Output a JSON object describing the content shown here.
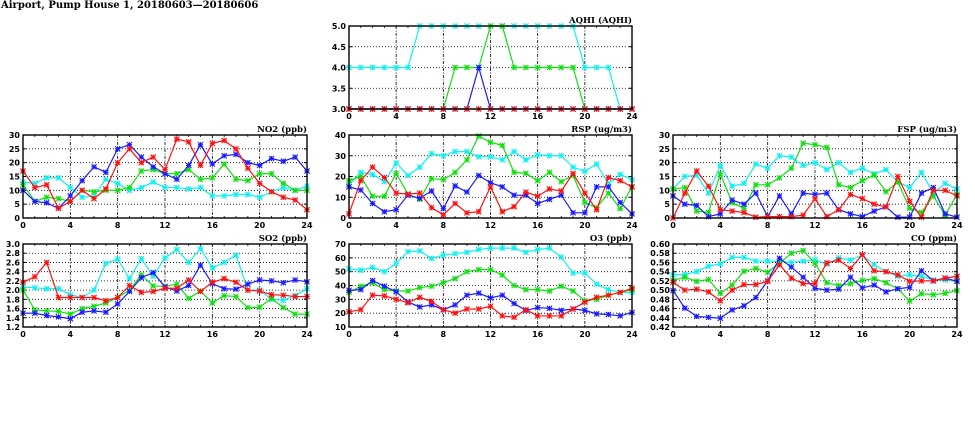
{
  "title": "Airport, Pump House 1, 20180603—20180606",
  "colors": {
    "blue": "#1a1aff",
    "red": "#ff1010",
    "green": "#10e010",
    "cyan": "#10f0f0"
  },
  "chart_data": [
    {
      "type": "line",
      "title": "AQHI (AQHI)",
      "panel": "top-center",
      "x": [
        0,
        1,
        2,
        3,
        4,
        5,
        6,
        7,
        8,
        9,
        10,
        11,
        12,
        13,
        14,
        15,
        16,
        17,
        18,
        19,
        20,
        21,
        22,
        23,
        24
      ],
      "xlim": [
        0,
        24
      ],
      "xticks": [
        "0",
        "4",
        "8",
        "12",
        "16",
        "20",
        "24"
      ],
      "ylim": [
        3.0,
        5.0
      ],
      "yticks": [
        "3.0",
        "3.5",
        "4.0",
        "4.5",
        "5.0"
      ],
      "grid": true,
      "series": [
        {
          "name": "cyan",
          "values": [
            4,
            4,
            4,
            4,
            4,
            4,
            5,
            5,
            5,
            5,
            5,
            5,
            5,
            5,
            5,
            5,
            5,
            5,
            5,
            5,
            4,
            4,
            4,
            3,
            3
          ]
        },
        {
          "name": "green",
          "values": [
            3,
            3,
            3,
            3,
            3,
            3,
            3,
            3,
            3,
            4,
            4,
            4,
            5,
            5,
            4,
            4,
            4,
            4,
            4,
            4,
            3,
            3,
            3,
            3,
            3
          ]
        },
        {
          "name": "blue",
          "values": [
            3,
            3,
            3,
            3,
            3,
            3,
            3,
            3,
            3,
            3,
            3,
            4,
            3,
            3,
            3,
            3,
            3,
            3,
            3,
            3,
            3,
            3,
            3,
            3,
            3
          ]
        },
        {
          "name": "red",
          "values": [
            3,
            3,
            3,
            3,
            3,
            3,
            3,
            3,
            3,
            3,
            3,
            3,
            3,
            3,
            3,
            3,
            3,
            3,
            3,
            3,
            3,
            3,
            3,
            3,
            3
          ]
        }
      ]
    },
    {
      "type": "line",
      "title": "NO2 (ppb)",
      "panel": "middle-left",
      "x": [
        0,
        1,
        2,
        3,
        4,
        5,
        6,
        7,
        8,
        9,
        10,
        11,
        12,
        13,
        14,
        15,
        16,
        17,
        18,
        19,
        20,
        21,
        22,
        23,
        24
      ],
      "xlim": [
        0,
        24
      ],
      "xticks": [
        "0",
        "4",
        "8",
        "12",
        "16",
        "20",
        "24"
      ],
      "ylim": [
        0,
        30
      ],
      "yticks": [
        "0",
        "5",
        "10",
        "15",
        "20",
        "25",
        "30"
      ],
      "grid": true,
      "series": [
        {
          "name": "cyan",
          "values": [
            13,
            12.5,
            14.5,
            14.5,
            11,
            7.5,
            8,
            14,
            12.5,
            10,
            11,
            13,
            11,
            11,
            10.5,
            11,
            8,
            8,
            8.5,
            8.5,
            7.5,
            9.5,
            11,
            10,
            11.5
          ]
        },
        {
          "name": "green",
          "values": [
            12,
            6,
            7.5,
            7,
            6,
            10,
            9.5,
            10,
            10,
            11,
            17,
            17.5,
            16,
            16,
            17.5,
            14,
            14.5,
            19.5,
            14,
            13.5,
            16,
            16,
            12.5,
            10,
            10
          ]
        },
        {
          "name": "blue",
          "values": [
            10,
            6,
            5.5,
            3.5,
            8,
            13.5,
            18.5,
            16.5,
            25,
            26.5,
            22,
            18.5,
            16,
            14,
            19,
            26.5,
            19.5,
            22.5,
            23,
            20,
            19,
            21.5,
            20.5,
            22,
            17
          ]
        },
        {
          "name": "red",
          "values": [
            17,
            11,
            12,
            3.5,
            6,
            10,
            7,
            10.5,
            20,
            25,
            20,
            22,
            17.5,
            28.5,
            27.5,
            19,
            27,
            28,
            25,
            18,
            12.5,
            9.5,
            7.5,
            6.5,
            3
          ]
        }
      ]
    },
    {
      "type": "line",
      "title": "RSP (ug/m3)",
      "panel": "middle-center",
      "x": [
        0,
        1,
        2,
        3,
        4,
        5,
        6,
        7,
        8,
        9,
        10,
        11,
        12,
        13,
        14,
        15,
        16,
        17,
        18,
        19,
        20,
        21,
        22,
        23,
        24
      ],
      "xlim": [
        0,
        24
      ],
      "xticks": [
        "0",
        "4",
        "8",
        "12",
        "16",
        "20",
        "24"
      ],
      "ylim": [
        0,
        40
      ],
      "yticks": [
        "0",
        "10",
        "20",
        "30",
        "40"
      ],
      "grid": true,
      "series": [
        {
          "name": "cyan",
          "values": [
            16,
            22,
            21,
            17.5,
            26.5,
            20.5,
            24.5,
            31,
            30,
            32,
            32,
            29.5,
            29.5,
            28,
            32,
            28,
            30.5,
            30,
            30,
            24.5,
            22.5,
            26,
            16.5,
            21,
            18.5
          ]
        },
        {
          "name": "green",
          "values": [
            18,
            20,
            10.5,
            10.5,
            21.5,
            11.5,
            9,
            19,
            18.5,
            22,
            28,
            39.5,
            36.5,
            35,
            22,
            21.5,
            18,
            22,
            17.5,
            20.5,
            7.5,
            5,
            12,
            4.5,
            15
          ]
        },
        {
          "name": "blue",
          "values": [
            15,
            13.5,
            7,
            3,
            4,
            11,
            9.5,
            13,
            4.5,
            15.5,
            12.5,
            20.5,
            17,
            15,
            11,
            11,
            7,
            9,
            11,
            2.5,
            2.5,
            15,
            15,
            7.5,
            2
          ]
        },
        {
          "name": "red",
          "values": [
            2,
            18,
            24.5,
            19.5,
            12,
            11.5,
            12,
            5,
            1.5,
            7,
            2.5,
            3,
            15,
            3,
            5.5,
            12.5,
            10.5,
            14,
            13,
            21.5,
            12,
            4,
            19.5,
            18,
            15
          ]
        }
      ]
    },
    {
      "type": "line",
      "title": "FSP (ug/m3)",
      "panel": "middle-right",
      "x": [
        0,
        1,
        2,
        3,
        4,
        5,
        6,
        7,
        8,
        9,
        10,
        11,
        12,
        13,
        14,
        15,
        16,
        17,
        18,
        19,
        20,
        21,
        22,
        23,
        24
      ],
      "xlim": [
        0,
        24
      ],
      "xticks": [
        "0",
        "4",
        "8",
        "12",
        "16",
        "20",
        "24"
      ],
      "ylim": [
        0,
        30
      ],
      "yticks": [
        "0",
        "5",
        "10",
        "15",
        "20",
        "25",
        "30"
      ],
      "grid": true,
      "series": [
        {
          "name": "cyan",
          "values": [
            10.5,
            15,
            15.5,
            9,
            19,
            11.5,
            12.5,
            19.5,
            18,
            22.5,
            22,
            19,
            20,
            17.5,
            20,
            16.5,
            18,
            16,
            17.5,
            13,
            11,
            16.5,
            9,
            12.5,
            10.5
          ]
        },
        {
          "name": "green",
          "values": [
            10.5,
            11,
            2.5,
            2,
            16,
            5.5,
            3.5,
            12,
            12,
            14.5,
            18,
            27,
            26.5,
            25.5,
            12,
            11,
            13.5,
            15.5,
            9.5,
            13,
            3.5,
            2,
            8,
            1,
            8.5
          ]
        },
        {
          "name": "blue",
          "values": [
            8,
            5,
            4.5,
            0.5,
            1.5,
            6.5,
            5,
            9,
            0.5,
            8,
            1.5,
            9,
            8.5,
            9,
            3,
            1.5,
            0.5,
            2.5,
            4,
            0.3,
            0.3,
            9,
            11,
            1.5,
            0.3
          ]
        },
        {
          "name": "red",
          "values": [
            0,
            9,
            17,
            11.5,
            3,
            2.5,
            2,
            0.3,
            0.5,
            0.5,
            0.5,
            1,
            7,
            0.5,
            3,
            8.5,
            7,
            5,
            4,
            15,
            6,
            0.3,
            10,
            10,
            8
          ]
        }
      ]
    },
    {
      "type": "line",
      "title": "SO2 (ppb)",
      "panel": "bottom-left",
      "x": [
        0,
        1,
        2,
        3,
        4,
        5,
        6,
        7,
        8,
        9,
        10,
        11,
        12,
        13,
        14,
        15,
        16,
        17,
        18,
        19,
        20,
        21,
        22,
        23,
        24
      ],
      "xlim": [
        0,
        24
      ],
      "xticks": [
        "0",
        "4",
        "8",
        "12",
        "16",
        "20",
        "24"
      ],
      "ylim": [
        1.2,
        3.0
      ],
      "yticks": [
        "1.2",
        "1.4",
        "1.6",
        "1.8",
        "2.0",
        "2.2",
        "2.4",
        "2.6",
        "2.8",
        "3.0"
      ],
      "grid": true,
      "series": [
        {
          "name": "cyan",
          "values": [
            2.07,
            2.05,
            2.03,
            2.03,
            1.9,
            1.84,
            2.0,
            2.58,
            2.67,
            2.25,
            2.68,
            2.3,
            2.7,
            2.88,
            2.6,
            2.9,
            2.48,
            2.6,
            2.76,
            2.0,
            2.0,
            1.8,
            1.78,
            1.88,
            2.03
          ]
        },
        {
          "name": "green",
          "values": [
            2.0,
            1.57,
            1.55,
            1.54,
            1.48,
            1.6,
            1.65,
            1.72,
            1.84,
            2.0,
            2.33,
            2.09,
            2.08,
            2.13,
            1.82,
            1.98,
            1.72,
            1.88,
            1.86,
            1.62,
            1.63,
            1.82,
            1.62,
            1.48,
            1.48
          ]
        },
        {
          "name": "blue",
          "values": [
            1.5,
            1.5,
            1.45,
            1.42,
            1.38,
            1.52,
            1.55,
            1.52,
            1.7,
            1.97,
            2.27,
            2.38,
            2.07,
            1.98,
            2.1,
            2.54,
            2.14,
            2.03,
            2.02,
            2.13,
            2.22,
            2.2,
            2.16,
            2.22,
            2.18
          ]
        },
        {
          "name": "red",
          "values": [
            2.17,
            2.29,
            2.6,
            1.84,
            1.84,
            1.84,
            1.84,
            1.77,
            1.84,
            2.1,
            1.95,
            1.97,
            2.04,
            2.04,
            2.22,
            1.97,
            2.17,
            2.25,
            2.17,
            2.0,
            1.98,
            1.9,
            1.89,
            1.86,
            1.86
          ]
        }
      ]
    },
    {
      "type": "line",
      "title": "O3 (ppb)",
      "panel": "bottom-center",
      "x": [
        0,
        1,
        2,
        3,
        4,
        5,
        6,
        7,
        8,
        9,
        10,
        11,
        12,
        13,
        14,
        15,
        16,
        17,
        18,
        19,
        20,
        21,
        22,
        23,
        24
      ],
      "xlim": [
        0,
        24
      ],
      "xticks": [
        "0",
        "4",
        "8",
        "12",
        "16",
        "20",
        "24"
      ],
      "ylim": [
        10,
        70
      ],
      "yticks": [
        "10",
        "20",
        "30",
        "40",
        "50",
        "60",
        "70"
      ],
      "grid": true,
      "series": [
        {
          "name": "cyan",
          "values": [
            52,
            51,
            53,
            50,
            56,
            64.5,
            65,
            59.5,
            62,
            63,
            64,
            66,
            67,
            67,
            67,
            64,
            66,
            67,
            60.5,
            49,
            49,
            41,
            37,
            35,
            35
          ]
        },
        {
          "name": "green",
          "values": [
            35,
            39.5,
            42,
            37,
            36,
            36,
            38.5,
            39.5,
            42,
            45,
            50,
            51.5,
            51.5,
            47.5,
            40,
            37,
            37,
            36,
            39.5,
            36,
            29,
            30,
            33,
            35,
            37
          ]
        },
        {
          "name": "blue",
          "values": [
            36.5,
            37,
            43.5,
            39.5,
            35.5,
            28,
            24.5,
            26,
            22.5,
            26,
            33,
            34.5,
            31,
            33,
            27,
            22,
            24,
            23.5,
            22,
            23,
            22,
            19.5,
            19,
            18,
            20.5
          ]
        },
        {
          "name": "red",
          "values": [
            21,
            22.5,
            33,
            32.5,
            30,
            27.5,
            31.5,
            28.5,
            22.5,
            20,
            23,
            23,
            25,
            18,
            17,
            22.5,
            18,
            18,
            18,
            23,
            28,
            31.5,
            33,
            35,
            38
          ]
        }
      ]
    },
    {
      "type": "line",
      "title": "CO (ppm)",
      "panel": "bottom-right",
      "x": [
        0,
        1,
        2,
        3,
        4,
        5,
        6,
        7,
        8,
        9,
        10,
        11,
        12,
        13,
        14,
        15,
        16,
        17,
        18,
        19,
        20,
        21,
        22,
        23,
        24
      ],
      "xlim": [
        0,
        24
      ],
      "xticks": [
        "0",
        "4",
        "8",
        "12",
        "16",
        "20",
        "24"
      ],
      "ylim": [
        0.42,
        0.6
      ],
      "yticks": [
        "0.42",
        "0.44",
        "0.46",
        "0.48",
        "0.50",
        "0.52",
        "0.54",
        "0.56",
        "0.58",
        "0.60"
      ],
      "grid": true,
      "series": [
        {
          "name": "cyan",
          "values": [
            0.533,
            0.534,
            0.54,
            0.552,
            0.557,
            0.571,
            0.571,
            0.563,
            0.563,
            0.562,
            0.56,
            0.563,
            0.566,
            0.556,
            0.57,
            0.565,
            0.576,
            0.555,
            0.54,
            0.53,
            0.533,
            0.53,
            0.522,
            0.522,
            0.52
          ]
        },
        {
          "name": "green",
          "values": [
            0.521,
            0.528,
            0.519,
            0.523,
            0.493,
            0.511,
            0.541,
            0.547,
            0.539,
            0.558,
            0.58,
            0.586,
            0.558,
            0.516,
            0.51,
            0.514,
            0.521,
            0.525,
            0.516,
            0.503,
            0.476,
            0.492,
            0.49,
            0.493,
            0.499
          ]
        },
        {
          "name": "blue",
          "values": [
            0.499,
            0.461,
            0.443,
            0.441,
            0.439,
            0.457,
            0.466,
            0.484,
            0.52,
            0.569,
            0.55,
            0.528,
            0.504,
            0.5,
            0.502,
            0.528,
            0.505,
            0.511,
            0.496,
            0.503,
            0.506,
            0.542,
            0.52,
            0.526,
            0.519
          ]
        },
        {
          "name": "red",
          "values": [
            0.517,
            0.5,
            0.502,
            0.496,
            0.477,
            0.5,
            0.512,
            0.512,
            0.519,
            0.555,
            0.526,
            0.514,
            0.514,
            0.559,
            0.565,
            0.547,
            0.577,
            0.542,
            0.54,
            0.533,
            0.519,
            0.52,
            0.52,
            0.526,
            0.53
          ]
        }
      ]
    }
  ]
}
